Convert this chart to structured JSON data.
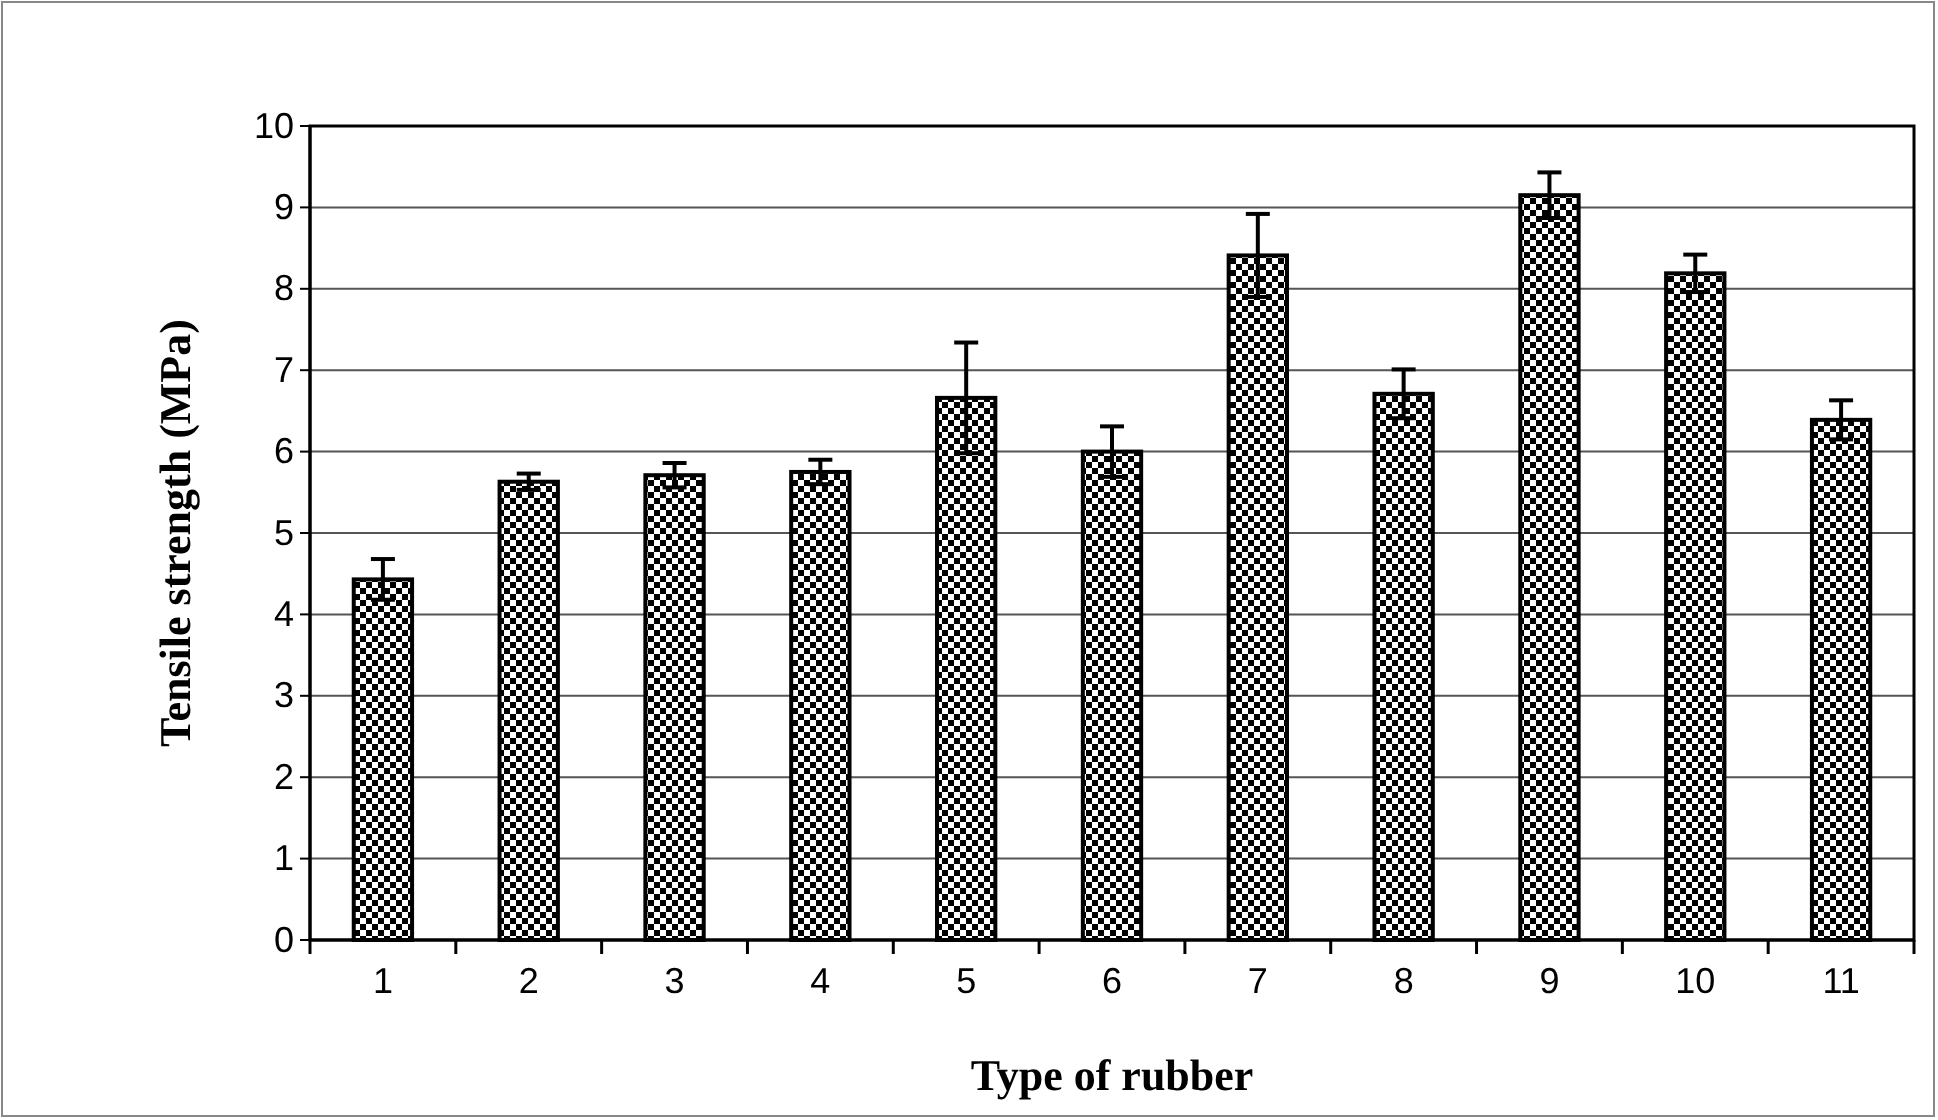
{
  "chart_data": {
    "type": "bar",
    "xlabel": "Type of rubber",
    "ylabel": "Tensile strength (MPa)",
    "categories": [
      "1",
      "2",
      "3",
      "4",
      "5",
      "6",
      "7",
      "8",
      "9",
      "10",
      "11"
    ],
    "values": [
      4.43,
      5.63,
      5.71,
      5.75,
      6.66,
      6.0,
      8.41,
      6.71,
      9.15,
      8.19,
      6.39
    ],
    "errors": [
      0.25,
      0.1,
      0.15,
      0.15,
      0.68,
      0.31,
      0.51,
      0.3,
      0.28,
      0.23,
      0.24
    ],
    "color": "#000000",
    "ylim": [
      0,
      10
    ],
    "yticks": [
      0,
      1,
      2,
      3,
      4,
      5,
      6,
      7,
      8,
      9,
      10
    ],
    "grid": "y"
  }
}
